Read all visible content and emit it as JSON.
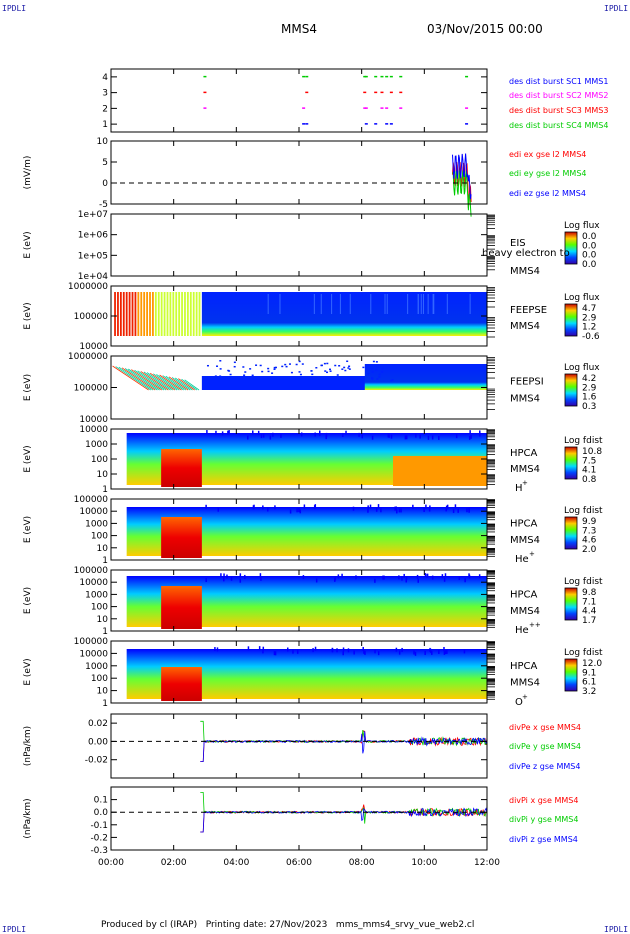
{
  "header": {
    "corner_left": "IPDLI",
    "corner_right": "IPDLI",
    "spacecraft": "MMS4",
    "datetime": "03/Nov/2015 00:00"
  },
  "footer": {
    "credit": "Produced by cl (IRAP)   Printing date: 27/Nov/2023   mms_mms4_srvy_vue_web2.cl",
    "corner_left": "IPDLI",
    "corner_right": "IPDLI"
  },
  "colors": {
    "red": "#ff0000",
    "green": "#00cc00",
    "blue": "#0000ff",
    "magenta": "#ff00ff"
  },
  "chart_data": [
    {
      "type": "scatter",
      "panel": "burst",
      "ylim": [
        0.5,
        4.5
      ],
      "yticks": [
        "1",
        "2",
        "3",
        "4"
      ],
      "series": [
        {
          "name": "des dist burst SC1 MMS1",
          "color": "#0000ff",
          "y": 1
        },
        {
          "name": "des dist burst SC2 MMS2",
          "color": "#ff00ff",
          "y": 2
        },
        {
          "name": "des dist burst SC3 MMS3",
          "color": "#ff0000",
          "y": 3
        },
        {
          "name": "des dist burst SC4 MMS4",
          "color": "#00cc00",
          "y": 4
        }
      ],
      "burst_times_h": [
        2.95,
        6.1,
        6.2,
        8.05,
        8.1,
        8.4,
        8.6,
        8.75,
        8.9,
        9.2,
        11.3
      ]
    },
    {
      "type": "line",
      "panel": "edi",
      "ylabel": "(mV/m)",
      "ylim": [
        -5,
        10
      ],
      "yticks": [
        "-5",
        "0",
        "5",
        "10"
      ],
      "series": [
        {
          "name": "edi ex gse l2 MMS4",
          "color": "#ff0000"
        },
        {
          "name": "edi ey gse l2 MMS4",
          "color": "#00cc00"
        },
        {
          "name": "edi ez gse l2 MMS4",
          "color": "#0000ff"
        }
      ]
    },
    {
      "type": "heatmap",
      "panel": "eis",
      "ylabel": "E (eV)",
      "yticks": [
        "1e+04",
        "1e+05",
        "1e+06",
        "1e+07"
      ],
      "labels": [
        "EIS",
        "heavy electron to",
        "MMS4"
      ],
      "colorbar_title": "Log flux",
      "colorbar_ticks": [
        "0.0",
        "0.0",
        "0.0",
        "0.0"
      ]
    },
    {
      "type": "heatmap",
      "panel": "feepse",
      "ylabel": "E (eV)",
      "yticks": [
        "10000",
        "100000",
        "1000000"
      ],
      "labels": [
        "FEEPSE",
        "MMS4"
      ],
      "colorbar_title": "Log flux",
      "colorbar_ticks": [
        "4.7",
        "2.9",
        "1.2",
        "-0.6"
      ]
    },
    {
      "type": "heatmap",
      "panel": "feepsi",
      "ylabel": "E (eV)",
      "yticks": [
        "10000",
        "100000",
        "1000000"
      ],
      "labels": [
        "FEEPSI",
        "MMS4"
      ],
      "colorbar_title": "Log flux",
      "colorbar_ticks": [
        "4.2",
        "2.9",
        "1.6",
        "0.3"
      ]
    },
    {
      "type": "heatmap",
      "panel": "hpca-h",
      "ylabel": "E (eV)",
      "yticks": [
        "1",
        "10",
        "100",
        "1000",
        "10000"
      ],
      "labels": [
        "HPCA",
        "MMS4"
      ],
      "species": "H",
      "species_sup": "+",
      "colorbar_title": "Log fdist",
      "colorbar_ticks": [
        "10.8",
        "7.5",
        "4.1",
        "0.8"
      ]
    },
    {
      "type": "heatmap",
      "panel": "hpca-he",
      "ylabel": "E (eV)",
      "yticks": [
        "1",
        "10",
        "100",
        "1000",
        "10000",
        "100000"
      ],
      "labels": [
        "HPCA",
        "MMS4"
      ],
      "species": "He",
      "species_sup": "+",
      "colorbar_title": "Log fdist",
      "colorbar_ticks": [
        "9.9",
        "7.3",
        "4.6",
        "2.0"
      ]
    },
    {
      "type": "heatmap",
      "panel": "hpca-hepp",
      "ylabel": "E (eV)",
      "yticks": [
        "1",
        "10",
        "100",
        "1000",
        "10000",
        "100000"
      ],
      "labels": [
        "HPCA",
        "MMS4"
      ],
      "species": "He",
      "species_sup": "++",
      "colorbar_title": "Log fdist",
      "colorbar_ticks": [
        "9.8",
        "7.1",
        "4.4",
        "1.7"
      ]
    },
    {
      "type": "heatmap",
      "panel": "hpca-o",
      "ylabel": "E (eV)",
      "yticks": [
        "1",
        "10",
        "100",
        "1000",
        "10000",
        "100000"
      ],
      "labels": [
        "HPCA",
        "MMS4"
      ],
      "species": "O",
      "species_sup": "+",
      "colorbar_title": "Log fdist",
      "colorbar_ticks": [
        "12.0",
        "9.1",
        "6.1",
        "3.2"
      ]
    },
    {
      "type": "line",
      "panel": "divpe",
      "ylabel": "(nPa/km)",
      "ylim": [
        -0.04,
        0.03
      ],
      "yticks": [
        "-0.02",
        "0.00",
        "0.02"
      ],
      "series": [
        {
          "name": "divPe x gse MMS4",
          "color": "#ff0000"
        },
        {
          "name": "divPe y gse MMS4",
          "color": "#00cc00"
        },
        {
          "name": "divPe z gse MMS4",
          "color": "#0000ff"
        }
      ]
    },
    {
      "type": "line",
      "panel": "divpi",
      "ylabel": "(nPa/km)",
      "ylim": [
        -0.3,
        0.2
      ],
      "yticks": [
        "-0.3",
        "-0.2",
        "-0.1",
        "0.0",
        "0.1"
      ],
      "series": [
        {
          "name": "divPi x gse MMS4",
          "color": "#ff0000"
        },
        {
          "name": "divPi y gse MMS4",
          "color": "#00cc00"
        },
        {
          "name": "divPi z gse MMS4",
          "color": "#0000ff"
        }
      ]
    }
  ],
  "time_axis": {
    "xlim_h": [
      0,
      12
    ],
    "ticks": [
      "00:00",
      "02:00",
      "04:00",
      "06:00",
      "08:00",
      "10:00",
      "12:00"
    ]
  }
}
